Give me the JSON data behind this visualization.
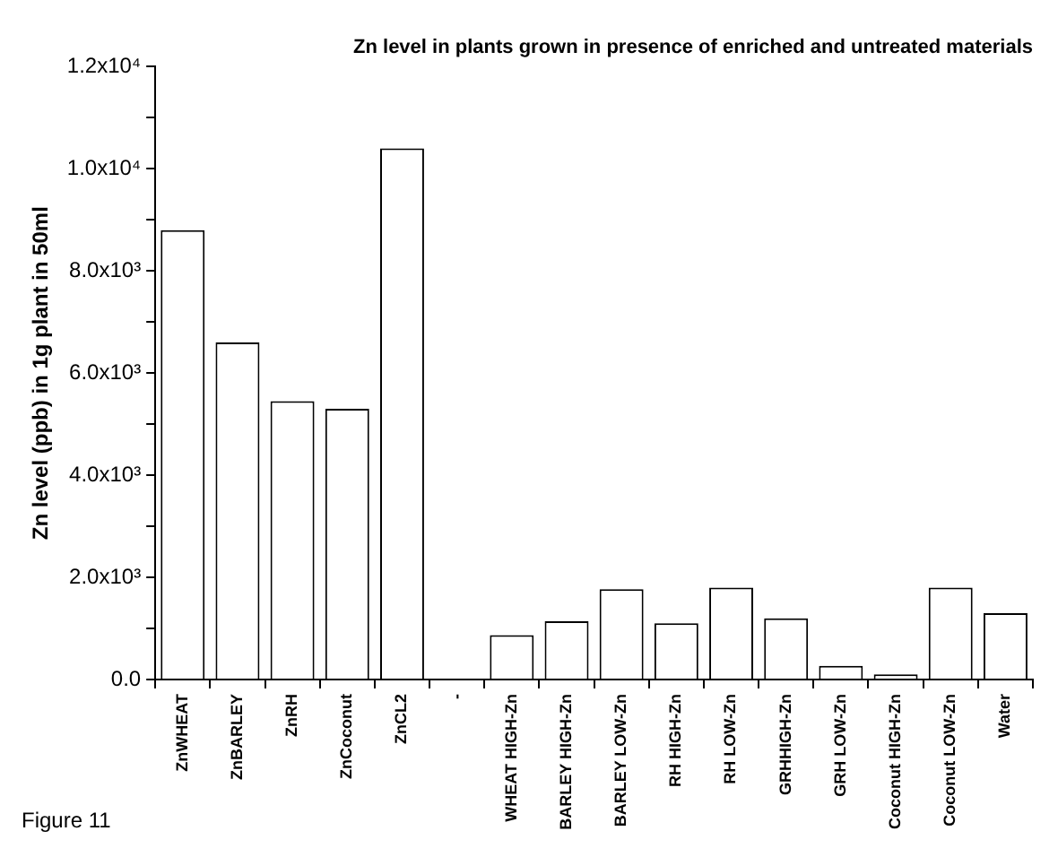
{
  "chart_data": {
    "type": "bar",
    "title": "Zn level in plants grown in presence of enriched and untreated materials",
    "ylabel": "Zn level (ppb) in 1g plant in 50ml",
    "annotations": [
      "Figure 11"
    ],
    "categories": [
      "ZnWHEAT",
      "ZnBARLEY",
      "ZnRH",
      "ZnCoconut",
      "ZnCL2",
      "-",
      "WHEAT HIGH-Zn",
      "BARLEY HIGH-Zn",
      "BARLEY LOW-Zn",
      "RH HIGH-Zn",
      "RH LOW-Zn",
      "GRHHIGH-Zn",
      "GRH LOW-Zn",
      "Coconut HIGH-Zn",
      "Coconut LOW-Zn",
      "Water"
    ],
    "values": [
      8800,
      6600,
      5450,
      5300,
      10400,
      null,
      870,
      1140,
      1770,
      1100,
      1800,
      1200,
      270,
      100,
      1800,
      1300
    ],
    "color": "#ffffff",
    "ylim": [
      0,
      12000
    ],
    "yticks": [
      {
        "value": 0,
        "label": "0.0"
      },
      {
        "value": 1000,
        "label": null
      },
      {
        "value": 2000,
        "label": "2.0x10³"
      },
      {
        "value": 3000,
        "label": null
      },
      {
        "value": 4000,
        "label": "4.0x10³"
      },
      {
        "value": 5000,
        "label": null
      },
      {
        "value": 6000,
        "label": "6.0x10³"
      },
      {
        "value": 7000,
        "label": null
      },
      {
        "value": 8000,
        "label": "8.0x10³"
      },
      {
        "value": 9000,
        "label": null
      },
      {
        "value": 10000,
        "label": "1.0x10⁴"
      },
      {
        "value": 11000,
        "label": null
      },
      {
        "value": 12000,
        "label": "1.2x10⁴"
      }
    ],
    "grid": false,
    "legend": false
  }
}
